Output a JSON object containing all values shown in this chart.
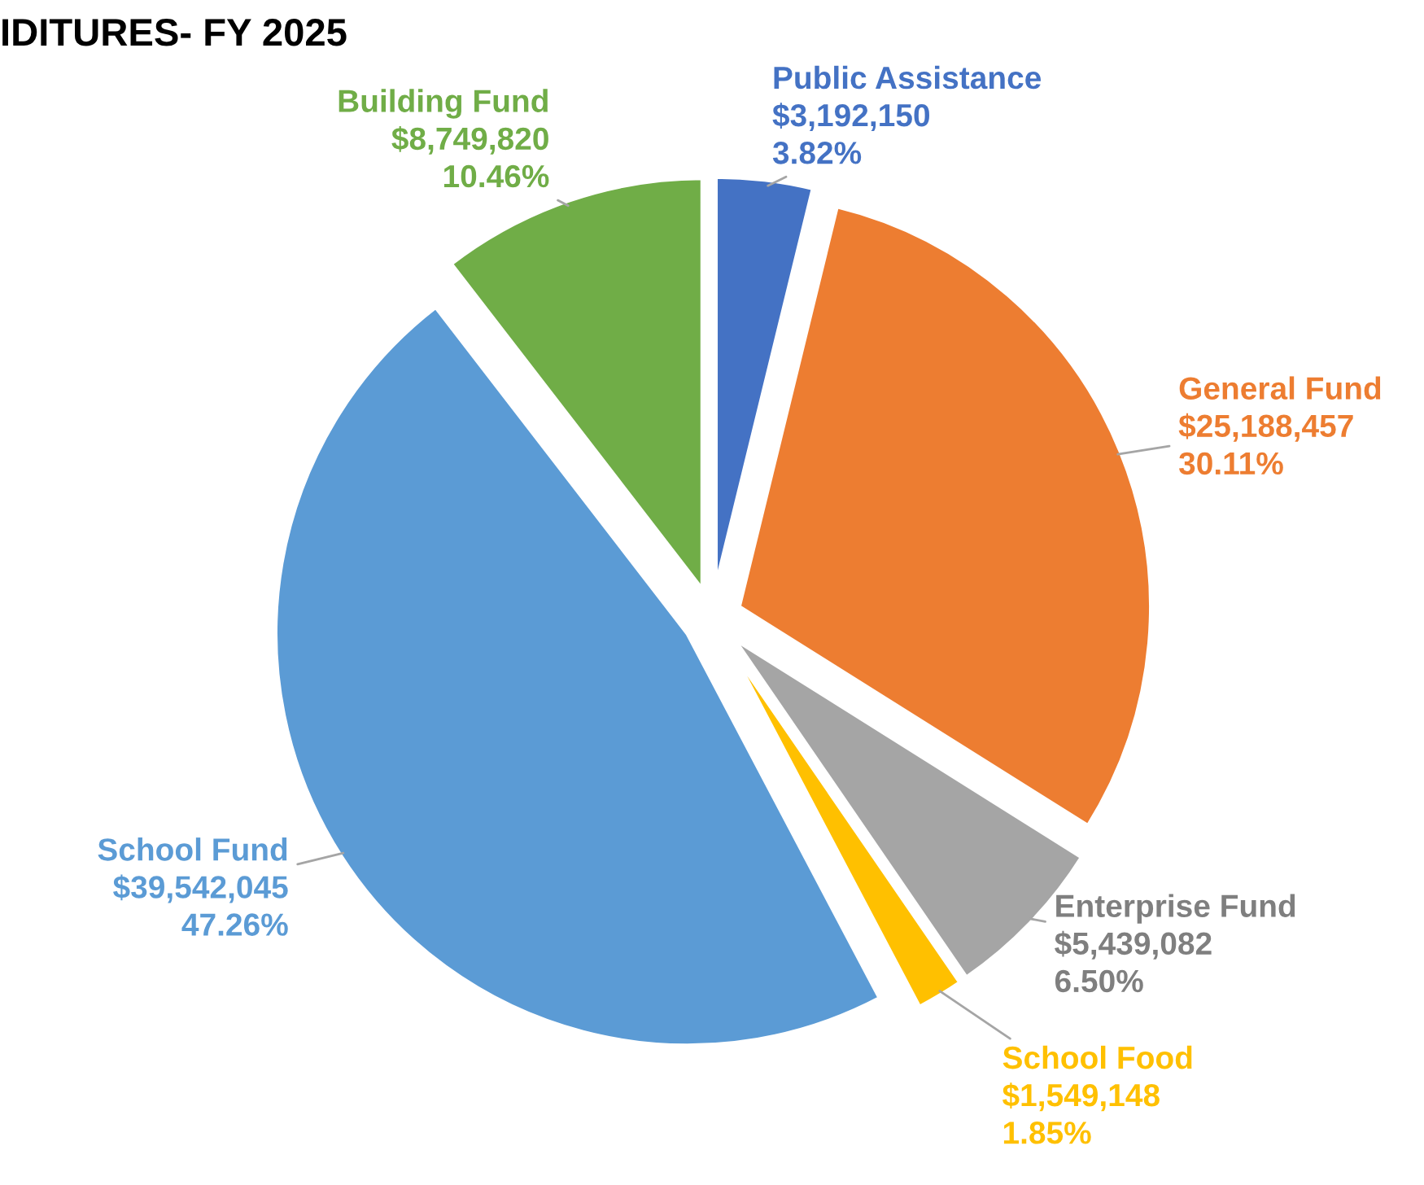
{
  "chart_data": {
    "type": "pie",
    "title": "IDITURES- FY 2025",
    "categories": [
      "Public Assistance",
      "General Fund",
      "Enterprise Fund",
      "School Food",
      "School Fund",
      "Building Fund"
    ],
    "values": [
      3192150,
      25188457,
      5439082,
      1549148,
      39542045,
      8749820
    ],
    "value_labels": [
      "$3,192,150\n3.82%",
      "$25,188,457\n30.11%",
      "$5,439,082\n6.50%",
      "$1,549,148\n1.85%",
      "$39,542,045\n47.26%",
      "$8,749,820\n10.46%"
    ],
    "colors": [
      "#4472c4",
      "#ed7d31",
      "#a5a5a5",
      "#ffc000",
      "#5b9bd5",
      "#70ad47"
    ],
    "legend": false
  }
}
